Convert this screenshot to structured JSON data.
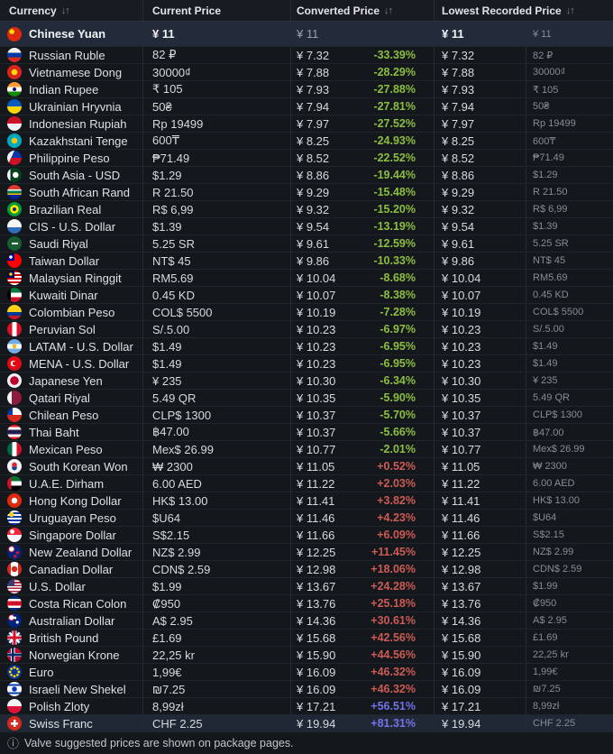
{
  "header": {
    "sort_icon": "↓↑",
    "columns": [
      {
        "label": "Currency",
        "sortable": true
      },
      {
        "label": "Current Price",
        "sortable": false
      },
      {
        "label": "Converted Price",
        "sortable": true
      },
      {
        "label": "Lowest Recorded Price",
        "sortable": true
      }
    ]
  },
  "colors": {
    "down": "#8cbe3f",
    "up": "#cd5b54",
    "up_strong": "#7173e8",
    "selected_row_bg": "#232b3a",
    "hover_row_bg": "#202835"
  },
  "rows": [
    {
      "name": "Chinese Yuan",
      "flag": "cn",
      "current": "¥ 11",
      "converted": "¥ 11",
      "pct": "",
      "trend": null,
      "lowest": "¥ 11",
      "lowest_original": "¥ 11",
      "state": "selected"
    },
    {
      "name": "Russian Ruble",
      "flag": "ru",
      "current": "82 ₽",
      "converted": "¥ 7.32",
      "pct": "-33.39%",
      "trend": "down",
      "lowest": "¥ 7.32",
      "lowest_original": "82 ₽",
      "state": null
    },
    {
      "name": "Vietnamese Dong",
      "flag": "vn",
      "current": "30000₫",
      "converted": "¥ 7.88",
      "pct": "-28.29%",
      "trend": "down",
      "lowest": "¥ 7.88",
      "lowest_original": "30000₫",
      "state": null
    },
    {
      "name": "Indian Rupee",
      "flag": "in",
      "current": "₹ 105",
      "converted": "¥ 7.93",
      "pct": "-27.88%",
      "trend": "down",
      "lowest": "¥ 7.93",
      "lowest_original": "₹ 105",
      "state": null
    },
    {
      "name": "Ukrainian Hryvnia",
      "flag": "ua",
      "current": "50₴",
      "converted": "¥ 7.94",
      "pct": "-27.81%",
      "trend": "down",
      "lowest": "¥ 7.94",
      "lowest_original": "50₴",
      "state": null
    },
    {
      "name": "Indonesian Rupiah",
      "flag": "id",
      "current": "Rp 19499",
      "converted": "¥ 7.97",
      "pct": "-27.52%",
      "trend": "down",
      "lowest": "¥ 7.97",
      "lowest_original": "Rp 19499",
      "state": null
    },
    {
      "name": "Kazakhstani Tenge",
      "flag": "kz",
      "current": "600₸",
      "converted": "¥ 8.25",
      "pct": "-24.93%",
      "trend": "down",
      "lowest": "¥ 8.25",
      "lowest_original": "600₸",
      "state": null
    },
    {
      "name": "Philippine Peso",
      "flag": "ph",
      "current": "₱71.49",
      "converted": "¥ 8.52",
      "pct": "-22.52%",
      "trend": "down",
      "lowest": "¥ 8.52",
      "lowest_original": "₱71.49",
      "state": null
    },
    {
      "name": "South Asia - USD",
      "flag": "pk",
      "current": "$1.29",
      "converted": "¥ 8.86",
      "pct": "-19.44%",
      "trend": "down",
      "lowest": "¥ 8.86",
      "lowest_original": "$1.29",
      "state": null
    },
    {
      "name": "South African Rand",
      "flag": "za",
      "current": "R 21.50",
      "converted": "¥ 9.29",
      "pct": "-15.48%",
      "trend": "down",
      "lowest": "¥ 9.29",
      "lowest_original": "R 21.50",
      "state": null
    },
    {
      "name": "Brazilian Real",
      "flag": "br",
      "current": "R$ 6,99",
      "converted": "¥ 9.32",
      "pct": "-15.20%",
      "trend": "down",
      "lowest": "¥ 9.32",
      "lowest_original": "R$ 6,99",
      "state": null
    },
    {
      "name": "CIS - U.S. Dollar",
      "flag": "cis",
      "current": "$1.39",
      "converted": "¥ 9.54",
      "pct": "-13.19%",
      "trend": "down",
      "lowest": "¥ 9.54",
      "lowest_original": "$1.39",
      "state": null
    },
    {
      "name": "Saudi Riyal",
      "flag": "sa",
      "current": "5.25 SR",
      "converted": "¥ 9.61",
      "pct": "-12.59%",
      "trend": "down",
      "lowest": "¥ 9.61",
      "lowest_original": "5.25 SR",
      "state": null
    },
    {
      "name": "Taiwan Dollar",
      "flag": "tw",
      "current": "NT$ 45",
      "converted": "¥ 9.86",
      "pct": "-10.33%",
      "trend": "down",
      "lowest": "¥ 9.86",
      "lowest_original": "NT$ 45",
      "state": null
    },
    {
      "name": "Malaysian Ringgit",
      "flag": "my",
      "current": "RM5.69",
      "converted": "¥ 10.04",
      "pct": "-8.68%",
      "trend": "down",
      "lowest": "¥ 10.04",
      "lowest_original": "RM5.69",
      "state": null
    },
    {
      "name": "Kuwaiti Dinar",
      "flag": "kw",
      "current": "0.45 KD",
      "converted": "¥ 10.07",
      "pct": "-8.38%",
      "trend": "down",
      "lowest": "¥ 10.07",
      "lowest_original": "0.45 KD",
      "state": null
    },
    {
      "name": "Colombian Peso",
      "flag": "co",
      "current": "COL$ 5500",
      "converted": "¥ 10.19",
      "pct": "-7.28%",
      "trend": "down",
      "lowest": "¥ 10.19",
      "lowest_original": "COL$ 5500",
      "state": null
    },
    {
      "name": "Peruvian Sol",
      "flag": "pe",
      "current": "S/.5.00",
      "converted": "¥ 10.23",
      "pct": "-6.97%",
      "trend": "down",
      "lowest": "¥ 10.23",
      "lowest_original": "S/.5.00",
      "state": null
    },
    {
      "name": "LATAM - U.S. Dollar",
      "flag": "ar",
      "current": "$1.49",
      "converted": "¥ 10.23",
      "pct": "-6.95%",
      "trend": "down",
      "lowest": "¥ 10.23",
      "lowest_original": "$1.49",
      "state": null
    },
    {
      "name": "MENA - U.S. Dollar",
      "flag": "tr",
      "current": "$1.49",
      "converted": "¥ 10.23",
      "pct": "-6.95%",
      "trend": "down",
      "lowest": "¥ 10.23",
      "lowest_original": "$1.49",
      "state": null
    },
    {
      "name": "Japanese Yen",
      "flag": "jp",
      "current": "¥ 235",
      "converted": "¥ 10.30",
      "pct": "-6.34%",
      "trend": "down",
      "lowest": "¥ 10.30",
      "lowest_original": "¥ 235",
      "state": null
    },
    {
      "name": "Qatari Riyal",
      "flag": "qa",
      "current": "5.49 QR",
      "converted": "¥ 10.35",
      "pct": "-5.90%",
      "trend": "down",
      "lowest": "¥ 10.35",
      "lowest_original": "5.49 QR",
      "state": null
    },
    {
      "name": "Chilean Peso",
      "flag": "cl",
      "current": "CLP$ 1300",
      "converted": "¥ 10.37",
      "pct": "-5.70%",
      "trend": "down",
      "lowest": "¥ 10.37",
      "lowest_original": "CLP$ 1300",
      "state": null
    },
    {
      "name": "Thai Baht",
      "flag": "th",
      "current": "฿47.00",
      "converted": "¥ 10.37",
      "pct": "-5.66%",
      "trend": "down",
      "lowest": "¥ 10.37",
      "lowest_original": "฿47.00",
      "state": null
    },
    {
      "name": "Mexican Peso",
      "flag": "mx",
      "current": "Mex$ 26.99",
      "converted": "¥ 10.77",
      "pct": "-2.01%",
      "trend": "down",
      "lowest": "¥ 10.77",
      "lowest_original": "Mex$ 26.99",
      "state": null
    },
    {
      "name": "South Korean Won",
      "flag": "kr",
      "current": "₩ 2300",
      "converted": "¥ 11.05",
      "pct": "+0.52%",
      "trend": "up",
      "lowest": "¥ 11.05",
      "lowest_original": "₩ 2300",
      "state": null
    },
    {
      "name": "U.A.E. Dirham",
      "flag": "ae",
      "current": "6.00 AED",
      "converted": "¥ 11.22",
      "pct": "+2.03%",
      "trend": "up",
      "lowest": "¥ 11.22",
      "lowest_original": "6.00 AED",
      "state": null
    },
    {
      "name": "Hong Kong Dollar",
      "flag": "hk",
      "current": "HK$ 13.00",
      "converted": "¥ 11.41",
      "pct": "+3.82%",
      "trend": "up",
      "lowest": "¥ 11.41",
      "lowest_original": "HK$ 13.00",
      "state": null
    },
    {
      "name": "Uruguayan Peso",
      "flag": "uy",
      "current": "$U64",
      "converted": "¥ 11.46",
      "pct": "+4.23%",
      "trend": "up",
      "lowest": "¥ 11.46",
      "lowest_original": "$U64",
      "state": null
    },
    {
      "name": "Singapore Dollar",
      "flag": "sg",
      "current": "S$2.15",
      "converted": "¥ 11.66",
      "pct": "+6.09%",
      "trend": "up",
      "lowest": "¥ 11.66",
      "lowest_original": "S$2.15",
      "state": null
    },
    {
      "name": "New Zealand Dollar",
      "flag": "nz",
      "current": "NZ$ 2.99",
      "converted": "¥ 12.25",
      "pct": "+11.45%",
      "trend": "up",
      "lowest": "¥ 12.25",
      "lowest_original": "NZ$ 2.99",
      "state": null
    },
    {
      "name": "Canadian Dollar",
      "flag": "ca",
      "current": "CDN$ 2.59",
      "converted": "¥ 12.98",
      "pct": "+18.06%",
      "trend": "up",
      "lowest": "¥ 12.98",
      "lowest_original": "CDN$ 2.59",
      "state": null
    },
    {
      "name": "U.S. Dollar",
      "flag": "us",
      "current": "$1.99",
      "converted": "¥ 13.67",
      "pct": "+24.28%",
      "trend": "up",
      "lowest": "¥ 13.67",
      "lowest_original": "$1.99",
      "state": null
    },
    {
      "name": "Costa Rican Colon",
      "flag": "cr",
      "current": "₡950",
      "converted": "¥ 13.76",
      "pct": "+25.18%",
      "trend": "up",
      "lowest": "¥ 13.76",
      "lowest_original": "₡950",
      "state": null
    },
    {
      "name": "Australian Dollar",
      "flag": "au",
      "current": "A$ 2.95",
      "converted": "¥ 14.36",
      "pct": "+30.61%",
      "trend": "up",
      "lowest": "¥ 14.36",
      "lowest_original": "A$ 2.95",
      "state": null
    },
    {
      "name": "British Pound",
      "flag": "gb",
      "current": "£1.69",
      "converted": "¥ 15.68",
      "pct": "+42.56%",
      "trend": "up",
      "lowest": "¥ 15.68",
      "lowest_original": "£1.69",
      "state": null
    },
    {
      "name": "Norwegian Krone",
      "flag": "no",
      "current": "22,25 kr",
      "converted": "¥ 15.90",
      "pct": "+44.56%",
      "trend": "up",
      "lowest": "¥ 15.90",
      "lowest_original": "22,25 kr",
      "state": null
    },
    {
      "name": "Euro",
      "flag": "eu",
      "current": "1,99€",
      "converted": "¥ 16.09",
      "pct": "+46.32%",
      "trend": "up",
      "lowest": "¥ 16.09",
      "lowest_original": "1,99€",
      "state": null
    },
    {
      "name": "Israeli New Shekel",
      "flag": "il",
      "current": "₪7.25",
      "converted": "¥ 16.09",
      "pct": "+46.32%",
      "trend": "up",
      "lowest": "¥ 16.09",
      "lowest_original": "₪7.25",
      "state": null
    },
    {
      "name": "Polish Zloty",
      "flag": "pl",
      "current": "8,99zł",
      "converted": "¥ 17.21",
      "pct": "+56.51%",
      "trend": "up_strong",
      "lowest": "¥ 17.21",
      "lowest_original": "8,99zł",
      "state": null
    },
    {
      "name": "Swiss Franc",
      "flag": "ch",
      "current": "CHF 2.25",
      "converted": "¥ 19.94",
      "pct": "+81.31%",
      "trend": "up_strong",
      "lowest": "¥ 19.94",
      "lowest_original": "CHF 2.25",
      "state": "hover"
    }
  ],
  "footer": {
    "icon": "ⓘ",
    "note": "Valve suggested prices are shown on package pages."
  }
}
